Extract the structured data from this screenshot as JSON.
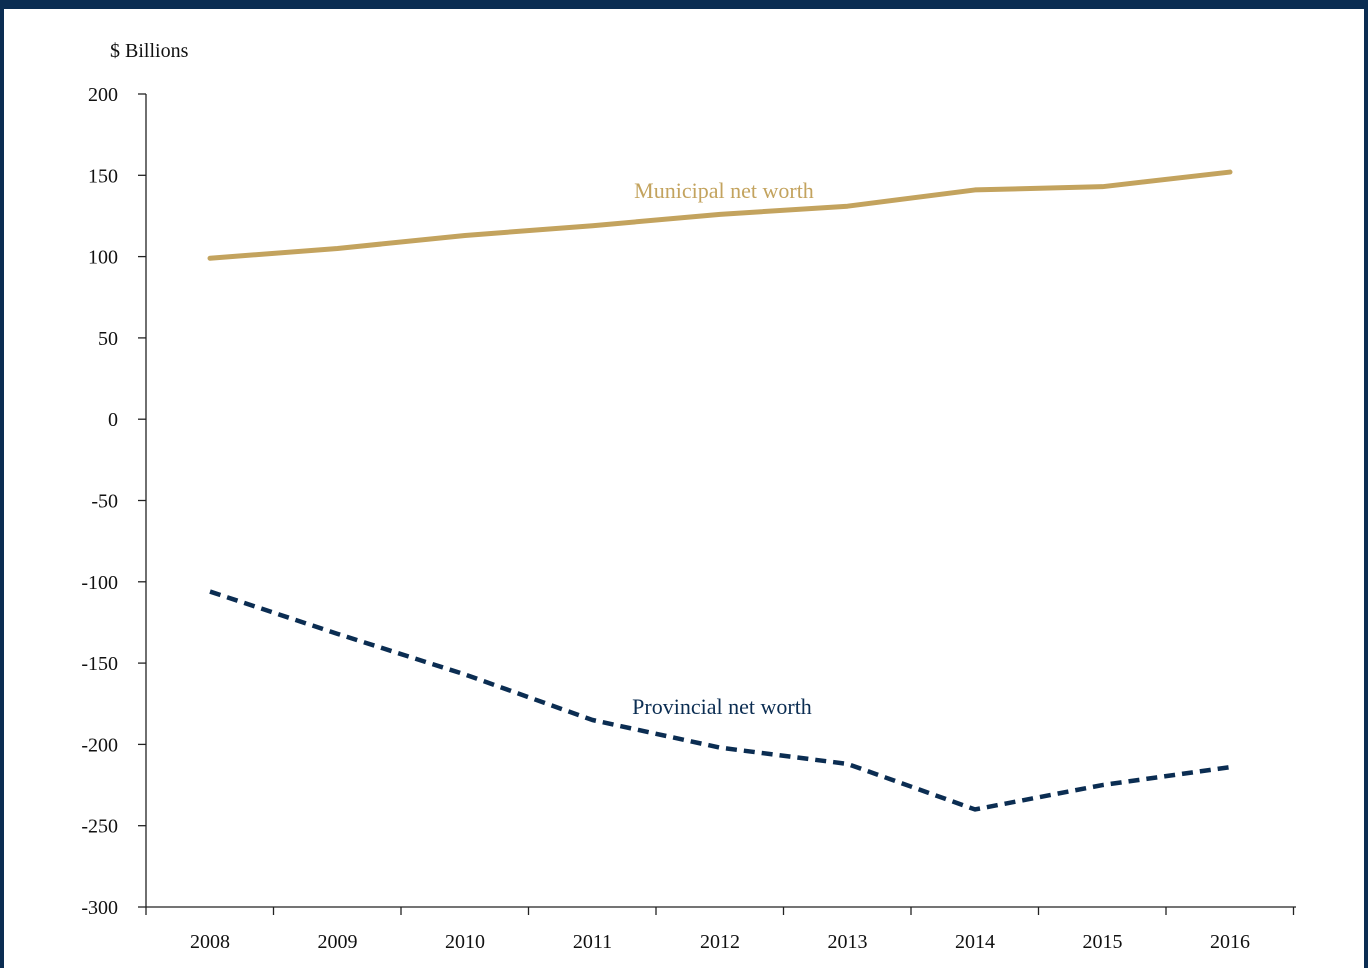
{
  "chart_data": {
    "type": "line",
    "title": "",
    "xlabel": "",
    "ylabel": "$ Billions",
    "ylim": [
      -300,
      200
    ],
    "yticks": [
      200,
      150,
      100,
      50,
      0,
      -50,
      -100,
      -150,
      -200,
      -250,
      -300
    ],
    "ytick_labels": [
      "200",
      "150",
      "100",
      "50",
      "0",
      "-50",
      "-100",
      "-150",
      "-200",
      "-250",
      "-300"
    ],
    "categories": [
      "2008",
      "2009",
      "2010",
      "2011",
      "2012",
      "2013",
      "2014",
      "2015",
      "2016"
    ],
    "grid": false,
    "legend": "inline labels",
    "series": [
      {
        "name": "Municipal net worth",
        "color": "#c3a35e",
        "style": "solid",
        "values": [
          99,
          105,
          113,
          119,
          126,
          131,
          141,
          143,
          152
        ]
      },
      {
        "name": "Provincial net worth",
        "color": "#0b2d52",
        "style": "dashed",
        "values": [
          -106,
          -132,
          -157,
          -185,
          -202,
          -212,
          -240,
          -225,
          -214
        ]
      }
    ]
  }
}
